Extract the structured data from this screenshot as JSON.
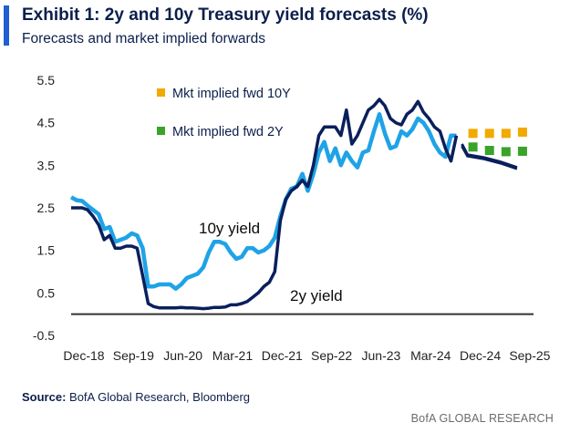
{
  "header": {
    "title": "Exhibit 1: 2y and 10y Treasury yield forecasts (%)",
    "subtitle": "Forecasts and market implied forwards"
  },
  "footer": {
    "source_label": "Source:",
    "source_text": " BofA Global Research, Bloomberg",
    "brand": "BofA GLOBAL RESEARCH"
  },
  "colors": {
    "ten_year": "#1fa3e6",
    "two_year": "#0a1f5c",
    "fwd_10y": "#f2a900",
    "fwd_2y": "#3aa32a",
    "zero_line": "#333333",
    "accent": "#1f5fd1"
  },
  "chart_data": {
    "type": "line",
    "title": "Exhibit 1: 2y and 10y Treasury yield forecasts (%)",
    "subtitle": "Forecasts and market implied forwards",
    "ylim": [
      -0.5,
      5.5
    ],
    "y_ticks": [
      "5.5",
      "4.5",
      "3.5",
      "2.5",
      "1.5",
      "0.5",
      "-0.5"
    ],
    "y_tick_values": [
      5.5,
      4.5,
      3.5,
      2.5,
      1.5,
      0.5,
      -0.5
    ],
    "x_ticks": [
      "Dec-18",
      "Sep-19",
      "Jun-20",
      "Mar-21",
      "Dec-21",
      "Sep-22",
      "Jun-23",
      "Mar-24",
      "Dec-24",
      "Sep-25"
    ],
    "x_tick_months": [
      0,
      9,
      18,
      27,
      36,
      45,
      54,
      63,
      72,
      81
    ],
    "grid": false,
    "annotations": [
      {
        "text": "10y yield",
        "series": "10y yield"
      },
      {
        "text": "2y yield",
        "series": "2y yield"
      }
    ],
    "legend": [
      "Mkt implied fwd 10Y",
      "Mkt implied fwd 2Y"
    ],
    "legend_placement": "top-left",
    "series": [
      {
        "name": "10y yield",
        "x_months": [
          0,
          1,
          2,
          3,
          4,
          5,
          6,
          7,
          8,
          9,
          10,
          11,
          12,
          13,
          14,
          15,
          16,
          17,
          18,
          19,
          20,
          21,
          22,
          23,
          24,
          25,
          26,
          27,
          28,
          29,
          30,
          31,
          32,
          33,
          34,
          35,
          36,
          37,
          38,
          39,
          40,
          41,
          42,
          43,
          44,
          45,
          46,
          47,
          48,
          49,
          50,
          51,
          52,
          53,
          54,
          55,
          56,
          57,
          58,
          59,
          60,
          61,
          62,
          63,
          64,
          65,
          66,
          67,
          68,
          69,
          70
        ],
        "values": [
          2.75,
          2.68,
          2.66,
          2.55,
          2.45,
          2.35,
          2.0,
          2.05,
          1.7,
          1.75,
          1.8,
          1.9,
          1.85,
          1.55,
          0.65,
          0.65,
          0.7,
          0.7,
          0.7,
          0.6,
          0.7,
          0.85,
          0.9,
          0.95,
          1.1,
          1.45,
          1.7,
          1.7,
          1.65,
          1.45,
          1.3,
          1.35,
          1.55,
          1.55,
          1.45,
          1.5,
          1.6,
          1.8,
          2.3,
          2.7,
          2.95,
          3.0,
          3.3,
          2.9,
          3.3,
          3.8,
          4.05,
          3.6,
          3.9,
          3.5,
          3.8,
          3.6,
          3.45,
          3.8,
          3.85,
          4.3,
          4.7,
          4.25,
          3.9,
          3.95,
          4.3,
          4.2,
          4.35,
          4.6,
          4.5,
          4.3,
          4.0,
          3.8,
          3.7,
          4.2,
          4.2
        ]
      },
      {
        "name": "2y yield",
        "x_months": [
          0,
          1,
          2,
          3,
          4,
          5,
          6,
          7,
          8,
          9,
          10,
          11,
          12,
          13,
          14,
          15,
          16,
          17,
          18,
          19,
          20,
          21,
          22,
          23,
          24,
          25,
          26,
          27,
          28,
          29,
          30,
          31,
          32,
          33,
          34,
          35,
          36,
          37,
          38,
          39,
          40,
          41,
          42,
          43,
          44,
          45,
          46,
          47,
          48,
          49,
          50,
          51,
          52,
          53,
          54,
          55,
          56,
          57,
          58,
          59,
          60,
          61,
          62,
          63,
          64,
          65,
          66,
          67,
          68,
          69,
          70
        ],
        "values": [
          2.5,
          2.5,
          2.5,
          2.45,
          2.3,
          2.1,
          1.75,
          1.85,
          1.55,
          1.55,
          1.6,
          1.6,
          1.55,
          0.9,
          0.25,
          0.18,
          0.15,
          0.15,
          0.15,
          0.15,
          0.16,
          0.15,
          0.15,
          0.14,
          0.13,
          0.14,
          0.16,
          0.16,
          0.17,
          0.22,
          0.22,
          0.25,
          0.3,
          0.4,
          0.5,
          0.65,
          0.75,
          1.0,
          2.2,
          2.7,
          2.9,
          3.0,
          3.15,
          3.0,
          3.5,
          4.2,
          4.4,
          4.4,
          4.4,
          4.2,
          4.8,
          4.0,
          4.2,
          4.5,
          4.8,
          4.9,
          5.05,
          4.9,
          4.6,
          4.5,
          4.45,
          4.7,
          4.8,
          5.0,
          4.75,
          4.6,
          4.4,
          4.3,
          3.9,
          3.6,
          4.2
        ]
      }
    ],
    "forecasts": [
      {
        "series": "2y yield",
        "x_months": [
          71,
          72,
          75,
          78,
          81
        ],
        "values": [
          3.95,
          3.72,
          3.65,
          3.55,
          3.42
        ]
      },
      {
        "series": "10y yield",
        "x_months": [
          71,
          72,
          75,
          78,
          81
        ],
        "values": [
          4.0,
          3.75,
          3.68,
          3.58,
          3.45
        ]
      }
    ],
    "forwards": [
      {
        "name": "Mkt implied fwd 10Y",
        "x_months": [
          73,
          76,
          79,
          82
        ],
        "values": [
          4.25,
          4.25,
          4.25,
          4.28
        ]
      },
      {
        "name": "Mkt implied fwd 2Y",
        "x_months": [
          73,
          76,
          79,
          82
        ],
        "values": [
          3.93,
          3.85,
          3.82,
          3.83
        ]
      }
    ]
  }
}
